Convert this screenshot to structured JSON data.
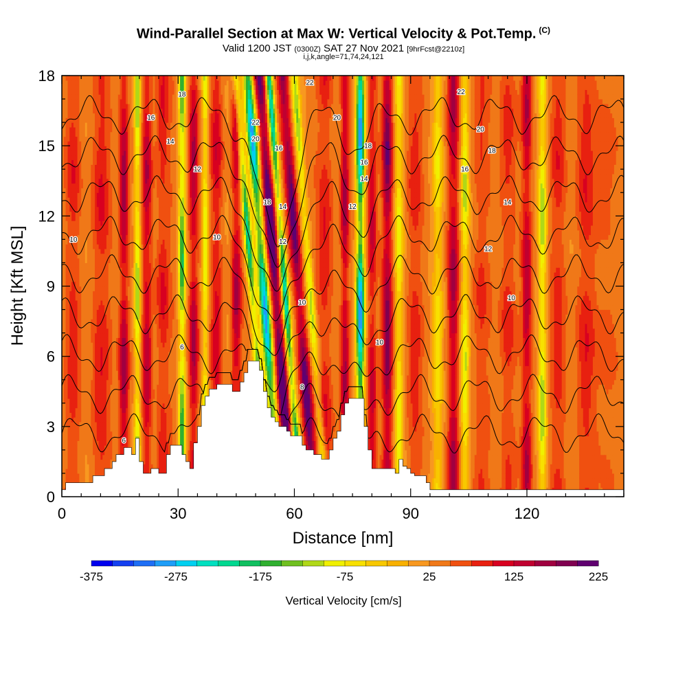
{
  "title": {
    "main": "Wind-Parallel Section at Max W: Vertical Velocity & Pot.Temp.",
    "copyright": "(C)",
    "valid_pre": "Valid 1200 JST",
    "valid_z": "(0300Z)",
    "valid_date": "SAT 27 Nov 2021",
    "forecast": "[9hrFcst@2210z]",
    "params": "i,j,k,angle=71,74,24,121"
  },
  "chart_data": {
    "type": "heatmap",
    "xlabel": "Distance [nm]",
    "ylabel": "Height [Kft MSL]",
    "xlim": [
      0,
      145
    ],
    "ylim": [
      0,
      18
    ],
    "x_ticks": [
      "0",
      "30",
      "60",
      "90",
      "120"
    ],
    "y_ticks": [
      "0",
      "3",
      "6",
      "9",
      "12",
      "15",
      "18"
    ],
    "colorbar": {
      "label": "Vertical Velocity [cm/s]",
      "tick_labels": [
        "-375",
        "-275",
        "-175",
        "-75",
        "25",
        "125",
        "225"
      ],
      "colors": [
        "#0000ee",
        "#1440f0",
        "#1e6ef5",
        "#1e9ef8",
        "#00d0f0",
        "#00e0c0",
        "#00d890",
        "#10c060",
        "#30b030",
        "#70c020",
        "#b0d818",
        "#f0f000",
        "#f8e000",
        "#f8c800",
        "#f8b000",
        "#f89820",
        "#f07818",
        "#f05010",
        "#e82010",
        "#d80020",
        "#c00030",
        "#a00040",
        "#800050",
        "#600070"
      ],
      "min": -375,
      "step": 25
    },
    "terrain_kft": [
      [
        0,
        0.3
      ],
      [
        1,
        0.3
      ],
      [
        1,
        0.6
      ],
      [
        5,
        0.6
      ],
      [
        8,
        0.6
      ],
      [
        8,
        0.9
      ],
      [
        11,
        0.9
      ],
      [
        11,
        1.2
      ],
      [
        13,
        1.2
      ],
      [
        13,
        1.5
      ],
      [
        14,
        1.5
      ],
      [
        14,
        1.8
      ],
      [
        16,
        1.8
      ],
      [
        16,
        2.1
      ],
      [
        18,
        2.1
      ],
      [
        18,
        1.8
      ],
      [
        19,
        1.8
      ],
      [
        19,
        2.5
      ],
      [
        20,
        2.5
      ],
      [
        20,
        1.5
      ],
      [
        21,
        1.5
      ],
      [
        21,
        1.0
      ],
      [
        23,
        1.0
      ],
      [
        23,
        1.2
      ],
      [
        25,
        1.2
      ],
      [
        25,
        1.0
      ],
      [
        27,
        1.0
      ],
      [
        27,
        1.8
      ],
      [
        28,
        1.8
      ],
      [
        28,
        2.2
      ],
      [
        31,
        2.2
      ],
      [
        31,
        1.8
      ],
      [
        32,
        1.8
      ],
      [
        32,
        1.5
      ],
      [
        33,
        1.5
      ],
      [
        33,
        1.2
      ],
      [
        34,
        1.2
      ],
      [
        34,
        2.3
      ],
      [
        35,
        2.3
      ],
      [
        35,
        3.0
      ],
      [
        36,
        3.0
      ],
      [
        36,
        3.9
      ],
      [
        37,
        3.9
      ],
      [
        37,
        4.3
      ],
      [
        38,
        4.3
      ],
      [
        38,
        4.6
      ],
      [
        40,
        4.6
      ],
      [
        40,
        4.8
      ],
      [
        44,
        4.8
      ],
      [
        44,
        4.5
      ],
      [
        46,
        4.5
      ],
      [
        46,
        4.9
      ],
      [
        47,
        4.9
      ],
      [
        47,
        5.3
      ],
      [
        48,
        5.3
      ],
      [
        48,
        5.8
      ],
      [
        51,
        5.8
      ],
      [
        51,
        5.4
      ],
      [
        52,
        5.4
      ],
      [
        52,
        4.5
      ],
      [
        53,
        4.5
      ],
      [
        53,
        3.8
      ],
      [
        54,
        3.8
      ],
      [
        54,
        3.4
      ],
      [
        55,
        3.4
      ],
      [
        55,
        3.2
      ],
      [
        56,
        3.2
      ],
      [
        56,
        3.0
      ],
      [
        58,
        3.0
      ],
      [
        58,
        2.8
      ],
      [
        59,
        2.8
      ],
      [
        59,
        2.6
      ],
      [
        62,
        2.6
      ],
      [
        62,
        2.2
      ],
      [
        63,
        2.2
      ],
      [
        63,
        2.0
      ],
      [
        65,
        2.0
      ],
      [
        65,
        1.8
      ],
      [
        67,
        1.8
      ],
      [
        67,
        1.6
      ],
      [
        69,
        1.6
      ],
      [
        69,
        2.0
      ],
      [
        70,
        2.0
      ],
      [
        70,
        2.5
      ],
      [
        71,
        2.5
      ],
      [
        71,
        2.8
      ],
      [
        72,
        2.8
      ],
      [
        72,
        3.5
      ],
      [
        73,
        3.5
      ],
      [
        73,
        4.0
      ],
      [
        74,
        4.0
      ],
      [
        74,
        4.2
      ],
      [
        78,
        4.2
      ],
      [
        78,
        3.0
      ],
      [
        79,
        3.0
      ],
      [
        79,
        2.0
      ],
      [
        80,
        2.0
      ],
      [
        80,
        1.2
      ],
      [
        86,
        1.2
      ],
      [
        86,
        1.0
      ],
      [
        87,
        1.0
      ],
      [
        87,
        1.6
      ],
      [
        88,
        1.6
      ],
      [
        88,
        1.3
      ],
      [
        89,
        1.3
      ],
      [
        89,
        1.2
      ],
      [
        90,
        1.2
      ],
      [
        90,
        1.0
      ],
      [
        91,
        1.0
      ],
      [
        91,
        0.9
      ],
      [
        94,
        0.9
      ],
      [
        94,
        0.6
      ],
      [
        95,
        0.6
      ],
      [
        95,
        0.3
      ],
      [
        145,
        0.3
      ]
    ],
    "w_bands": [
      {
        "x": 3,
        "w": 2.0,
        "v": 60
      },
      {
        "x": 10,
        "w": 2.5,
        "v": 70
      },
      {
        "x": 16,
        "w": 1.2,
        "v": 150
      },
      {
        "x": 19.5,
        "w": 0.8,
        "v": -170
      },
      {
        "x": 22,
        "w": 1.2,
        "v": 120
      },
      {
        "x": 26,
        "w": 1.8,
        "v": 80
      },
      {
        "x": 31,
        "w": 0.9,
        "v": -220
      },
      {
        "x": 34,
        "w": 1.2,
        "v": 140
      },
      {
        "x": 37,
        "w": 0.8,
        "v": -150
      },
      {
        "x": 40,
        "w": 1.5,
        "v": 90
      },
      {
        "x": 45,
        "w": 1.2,
        "v": 130
      },
      {
        "x": 49,
        "w": 1.0,
        "v": -250
      },
      {
        "x": 52,
        "w": 1.3,
        "v": -320
      },
      {
        "x": 55,
        "w": 1.3,
        "v": 260
      },
      {
        "x": 57.5,
        "w": 0.9,
        "v": -280
      },
      {
        "x": 61,
        "w": 1.3,
        "v": 210
      },
      {
        "x": 64,
        "w": 1.0,
        "v": -150
      },
      {
        "x": 68,
        "w": 2.0,
        "v": 80
      },
      {
        "x": 73,
        "w": 1.0,
        "v": 130
      },
      {
        "x": 77,
        "w": 1.1,
        "v": -330
      },
      {
        "x": 80,
        "w": 1.2,
        "v": 110
      },
      {
        "x": 84,
        "w": 1.2,
        "v": 170
      },
      {
        "x": 87,
        "w": 1.0,
        "v": -120
      },
      {
        "x": 91,
        "w": 2.0,
        "v": 60
      },
      {
        "x": 97,
        "w": 1.2,
        "v": -100
      },
      {
        "x": 101,
        "w": 1.3,
        "v": 130
      },
      {
        "x": 104,
        "w": 1.0,
        "v": -140
      },
      {
        "x": 108,
        "w": 2.2,
        "v": 50
      },
      {
        "x": 115,
        "w": 2.0,
        "v": 70
      },
      {
        "x": 120,
        "w": 1.2,
        "v": 120
      },
      {
        "x": 124,
        "w": 1.0,
        "v": -150
      },
      {
        "x": 128,
        "w": 2.0,
        "v": 60
      },
      {
        "x": 135,
        "w": 2.5,
        "v": 70
      },
      {
        "x": 141,
        "w": 2.5,
        "v": 40
      }
    ],
    "theta_levels": [
      6,
      8,
      10,
      12,
      14,
      16,
      18,
      20,
      22
    ],
    "theta_labels": [
      {
        "text": "6",
        "x": 16,
        "y": 2.3
      },
      {
        "text": "6",
        "x": 31,
        "y": 6.3
      },
      {
        "text": "8",
        "x": 62,
        "y": 4.6
      },
      {
        "text": "10",
        "x": 3,
        "y": 10.9
      },
      {
        "text": "10",
        "x": 40,
        "y": 11.0
      },
      {
        "text": "10",
        "x": 62,
        "y": 8.2
      },
      {
        "text": "10",
        "x": 82,
        "y": 6.5
      },
      {
        "text": "10",
        "x": 116,
        "y": 8.4
      },
      {
        "text": "12",
        "x": 35,
        "y": 13.9
      },
      {
        "text": "12",
        "x": 57,
        "y": 10.8
      },
      {
        "text": "12",
        "x": 75,
        "y": 12.3
      },
      {
        "text": "12",
        "x": 110,
        "y": 10.5
      },
      {
        "text": "14",
        "x": 28,
        "y": 15.1
      },
      {
        "text": "14",
        "x": 57,
        "y": 12.3
      },
      {
        "text": "14",
        "x": 78,
        "y": 13.5
      },
      {
        "text": "14",
        "x": 115,
        "y": 12.5
      },
      {
        "text": "16",
        "x": 23,
        "y": 16.1
      },
      {
        "text": "16",
        "x": 78,
        "y": 14.2
      },
      {
        "text": "16",
        "x": 104,
        "y": 13.9
      },
      {
        "text": "16",
        "x": 56,
        "y": 14.8
      },
      {
        "text": "18",
        "x": 31,
        "y": 17.1
      },
      {
        "text": "18",
        "x": 53,
        "y": 12.5
      },
      {
        "text": "18",
        "x": 79,
        "y": 14.9
      },
      {
        "text": "18",
        "x": 111,
        "y": 14.7
      },
      {
        "text": "20",
        "x": 50,
        "y": 15.2
      },
      {
        "text": "20",
        "x": 71,
        "y": 16.1
      },
      {
        "text": "20",
        "x": 108,
        "y": 15.6
      },
      {
        "text": "22",
        "x": 50,
        "y": 15.9
      },
      {
        "text": "22",
        "x": 64,
        "y": 17.6
      },
      {
        "text": "22",
        "x": 103,
        "y": 17.2
      }
    ]
  }
}
